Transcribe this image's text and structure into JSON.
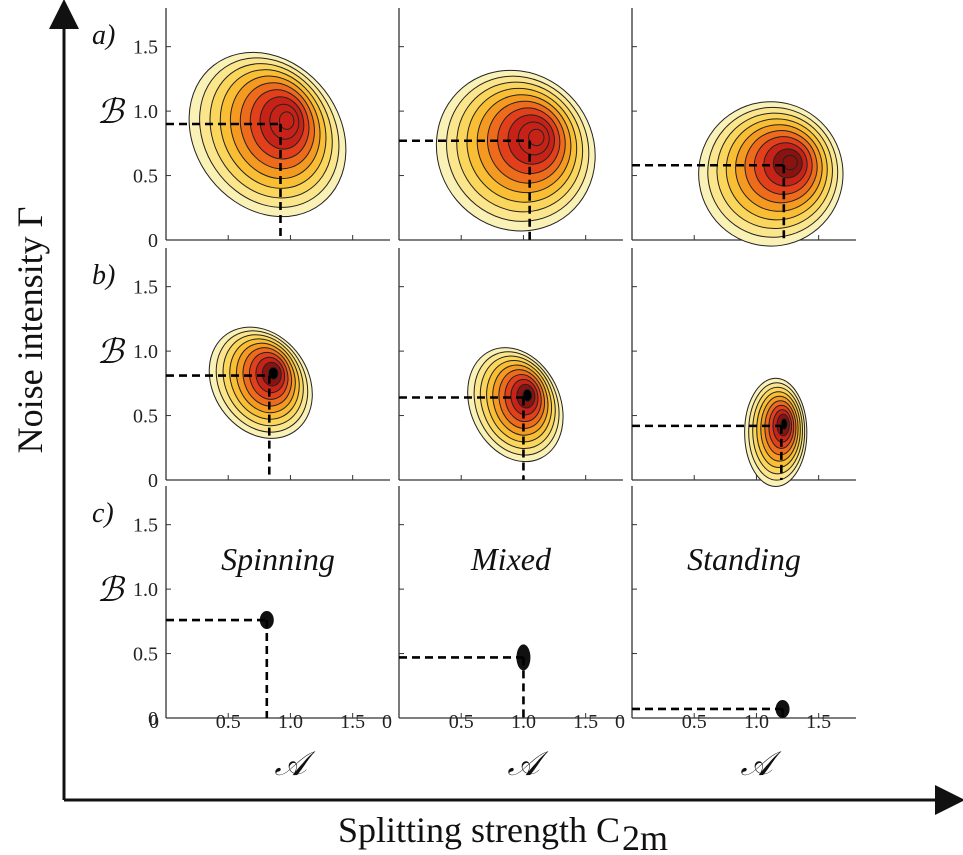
{
  "chart_data": {
    "type": "contour-grid",
    "xlabel": "Splitting strength C",
    "xlabel_sub": "2m",
    "ylabel": "Noise intensity Γ",
    "panel_xlabel": "𝒜",
    "panel_ylabel": "ℬ",
    "xticks": [
      "0",
      "0.5",
      "1.0",
      "1.5"
    ],
    "yticks": [
      "0",
      "0.5",
      "1.0",
      "1.5"
    ],
    "xlim": [
      0,
      1.8
    ],
    "ylim": [
      0,
      1.8
    ],
    "rows": [
      {
        "label": "a)",
        "panels": [
          {
            "peak_A": 0.92,
            "peak_B": 0.9,
            "spread_A": 0.58,
            "spread_B": 0.68,
            "tilt_deg": -38,
            "max_color": "#e8231c"
          },
          {
            "peak_A": 1.05,
            "peak_B": 0.77,
            "spread_A": 0.62,
            "spread_B": 0.64,
            "tilt_deg": -40,
            "max_color": "#e8231c"
          },
          {
            "peak_A": 1.22,
            "peak_B": 0.58,
            "spread_A": 0.58,
            "spread_B": 0.56,
            "tilt_deg": -30,
            "max_color": "#b01410"
          }
        ]
      },
      {
        "label": "b)",
        "panels": [
          {
            "peak_A": 0.83,
            "peak_B": 0.81,
            "spread_A": 0.38,
            "spread_B": 0.46,
            "tilt_deg": -35,
            "max_color": "#000000"
          },
          {
            "peak_A": 1.0,
            "peak_B": 0.64,
            "spread_A": 0.36,
            "spread_B": 0.46,
            "tilt_deg": -25,
            "max_color": "#000000"
          },
          {
            "peak_A": 1.2,
            "peak_B": 0.42,
            "spread_A": 0.25,
            "spread_B": 0.42,
            "tilt_deg": 0,
            "max_color": "#000000"
          }
        ]
      },
      {
        "label": "c)",
        "panels": [
          {
            "peak_A": 0.81,
            "peak_B": 0.76,
            "regime": "Spinning"
          },
          {
            "peak_A": 1.0,
            "peak_B": 0.47,
            "regime": "Mixed"
          },
          {
            "peak_A": 1.21,
            "peak_B": 0.07,
            "regime": "Standing"
          }
        ]
      }
    ],
    "contour_colors": [
      "#faf1b6",
      "#fbe68e",
      "#fad65c",
      "#f9be33",
      "#f49a21",
      "#ee6b1c",
      "#e2401a",
      "#c62217",
      "#8a1310",
      "#000000"
    ]
  }
}
